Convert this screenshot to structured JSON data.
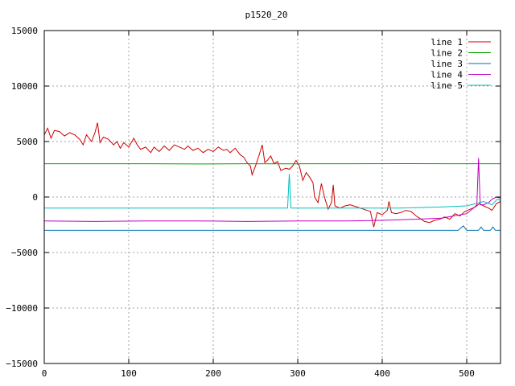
{
  "chart_data": {
    "type": "line",
    "title": "p1520_20",
    "xlabel": "",
    "ylabel": "",
    "xlim": [
      0,
      540
    ],
    "ylim": [
      -15000,
      15000
    ],
    "grid": true,
    "legend_position": "top-right",
    "x_ticks": [
      0,
      100,
      200,
      300,
      400,
      500
    ],
    "y_ticks": [
      -15000,
      -10000,
      -5000,
      0,
      5000,
      10000,
      15000
    ],
    "x_tick_labels": [
      "0",
      "100",
      "200",
      "300",
      "400",
      "500"
    ],
    "y_tick_labels": [
      "−15000",
      "−10000",
      "−5000",
      "0",
      "5000",
      "10000",
      "15000"
    ],
    "series": [
      {
        "name": "line 1",
        "color": "#cc0000",
        "points": [
          [
            0,
            5600
          ],
          [
            4,
            6200
          ],
          [
            8,
            5300
          ],
          [
            12,
            6000
          ],
          [
            18,
            5900
          ],
          [
            24,
            5500
          ],
          [
            30,
            5800
          ],
          [
            36,
            5600
          ],
          [
            42,
            5200
          ],
          [
            46,
            4700
          ],
          [
            50,
            5600
          ],
          [
            56,
            5000
          ],
          [
            60,
            5800
          ],
          [
            63,
            6700
          ],
          [
            66,
            4900
          ],
          [
            70,
            5400
          ],
          [
            76,
            5200
          ],
          [
            82,
            4700
          ],
          [
            86,
            5000
          ],
          [
            90,
            4400
          ],
          [
            94,
            4900
          ],
          [
            100,
            4500
          ],
          [
            106,
            5300
          ],
          [
            110,
            4700
          ],
          [
            114,
            4300
          ],
          [
            120,
            4500
          ],
          [
            126,
            4000
          ],
          [
            130,
            4500
          ],
          [
            136,
            4100
          ],
          [
            142,
            4600
          ],
          [
            148,
            4200
          ],
          [
            154,
            4700
          ],
          [
            160,
            4500
          ],
          [
            166,
            4300
          ],
          [
            170,
            4600
          ],
          [
            176,
            4200
          ],
          [
            182,
            4400
          ],
          [
            188,
            4000
          ],
          [
            194,
            4300
          ],
          [
            200,
            4100
          ],
          [
            206,
            4500
          ],
          [
            212,
            4200
          ],
          [
            216,
            4300
          ],
          [
            220,
            4000
          ],
          [
            226,
            4400
          ],
          [
            232,
            3800
          ],
          [
            236,
            3600
          ],
          [
            240,
            3100
          ],
          [
            244,
            2800
          ],
          [
            246,
            2000
          ],
          [
            250,
            2800
          ],
          [
            254,
            3700
          ],
          [
            258,
            4700
          ],
          [
            261,
            3100
          ],
          [
            264,
            3300
          ],
          [
            268,
            3700
          ],
          [
            272,
            3000
          ],
          [
            276,
            3200
          ],
          [
            280,
            2400
          ],
          [
            286,
            2600
          ],
          [
            290,
            2500
          ],
          [
            294,
            2800
          ],
          [
            298,
            3300
          ],
          [
            302,
            2800
          ],
          [
            306,
            1500
          ],
          [
            310,
            2200
          ],
          [
            314,
            1800
          ],
          [
            318,
            1300
          ],
          [
            320,
            0
          ],
          [
            324,
            -500
          ],
          [
            328,
            1200
          ],
          [
            332,
            -100
          ],
          [
            336,
            -1100
          ],
          [
            340,
            -500
          ],
          [
            342,
            1100
          ],
          [
            344,
            -800
          ],
          [
            350,
            -1000
          ],
          [
            356,
            -800
          ],
          [
            362,
            -700
          ],
          [
            370,
            -900
          ],
          [
            378,
            -1100
          ],
          [
            386,
            -1300
          ],
          [
            390,
            -2700
          ],
          [
            394,
            -1400
          ],
          [
            400,
            -1600
          ],
          [
            406,
            -1200
          ],
          [
            408,
            -400
          ],
          [
            411,
            -1400
          ],
          [
            416,
            -1500
          ],
          [
            422,
            -1400
          ],
          [
            428,
            -1200
          ],
          [
            434,
            -1300
          ],
          [
            440,
            -1700
          ],
          [
            446,
            -2000
          ],
          [
            450,
            -2200
          ],
          [
            456,
            -2300
          ],
          [
            462,
            -2100
          ],
          [
            468,
            -2000
          ],
          [
            474,
            -1800
          ],
          [
            480,
            -2000
          ],
          [
            486,
            -1500
          ],
          [
            492,
            -1700
          ],
          [
            498,
            -1300
          ],
          [
            504,
            -1100
          ],
          [
            510,
            -900
          ],
          [
            515,
            -600
          ],
          [
            520,
            -800
          ],
          [
            526,
            -1000
          ],
          [
            530,
            -1200
          ],
          [
            535,
            -600
          ],
          [
            540,
            -400
          ]
        ]
      },
      {
        "name": "line 2",
        "color": "#00a000",
        "points": [
          [
            0,
            3000
          ],
          [
            60,
            3000
          ],
          [
            120,
            3000
          ],
          [
            180,
            2980
          ],
          [
            240,
            3000
          ],
          [
            300,
            2990
          ],
          [
            360,
            3000
          ],
          [
            420,
            3010
          ],
          [
            480,
            3000
          ],
          [
            540,
            3000
          ]
        ]
      },
      {
        "name": "line 3",
        "color": "#0070b0",
        "points": [
          [
            0,
            -3000
          ],
          [
            100,
            -3000
          ],
          [
            200,
            -3000
          ],
          [
            300,
            -3000
          ],
          [
            400,
            -3000
          ],
          [
            490,
            -3000
          ],
          [
            496,
            -2600
          ],
          [
            500,
            -3000
          ],
          [
            514,
            -3000
          ],
          [
            517,
            -2700
          ],
          [
            520,
            -3000
          ],
          [
            528,
            -3000
          ],
          [
            531,
            -2700
          ],
          [
            534,
            -3000
          ],
          [
            540,
            -3000
          ]
        ]
      },
      {
        "name": "line 4",
        "color": "#c000c0",
        "points": [
          [
            0,
            -2150
          ],
          [
            60,
            -2200
          ],
          [
            120,
            -2150
          ],
          [
            180,
            -2150
          ],
          [
            240,
            -2200
          ],
          [
            300,
            -2150
          ],
          [
            360,
            -2150
          ],
          [
            400,
            -2100
          ],
          [
            440,
            -2000
          ],
          [
            470,
            -1900
          ],
          [
            500,
            -1500
          ],
          [
            508,
            -1000
          ],
          [
            512,
            -700
          ],
          [
            514,
            3500
          ],
          [
            516,
            -700
          ],
          [
            520,
            -700
          ],
          [
            526,
            -500
          ],
          [
            530,
            -200
          ],
          [
            535,
            0
          ],
          [
            540,
            -100
          ]
        ]
      },
      {
        "name": "line 5",
        "color": "#00c0c0",
        "points": [
          [
            0,
            -1000
          ],
          [
            60,
            -1000
          ],
          [
            120,
            -1000
          ],
          [
            180,
            -1000
          ],
          [
            240,
            -1000
          ],
          [
            288,
            -1000
          ],
          [
            290,
            2100
          ],
          [
            292,
            -1000
          ],
          [
            300,
            -1000
          ],
          [
            360,
            -1000
          ],
          [
            420,
            -1000
          ],
          [
            470,
            -900
          ],
          [
            500,
            -800
          ],
          [
            515,
            -500
          ],
          [
            520,
            -400
          ],
          [
            530,
            -700
          ],
          [
            536,
            -200
          ],
          [
            540,
            -300
          ]
        ]
      }
    ]
  }
}
